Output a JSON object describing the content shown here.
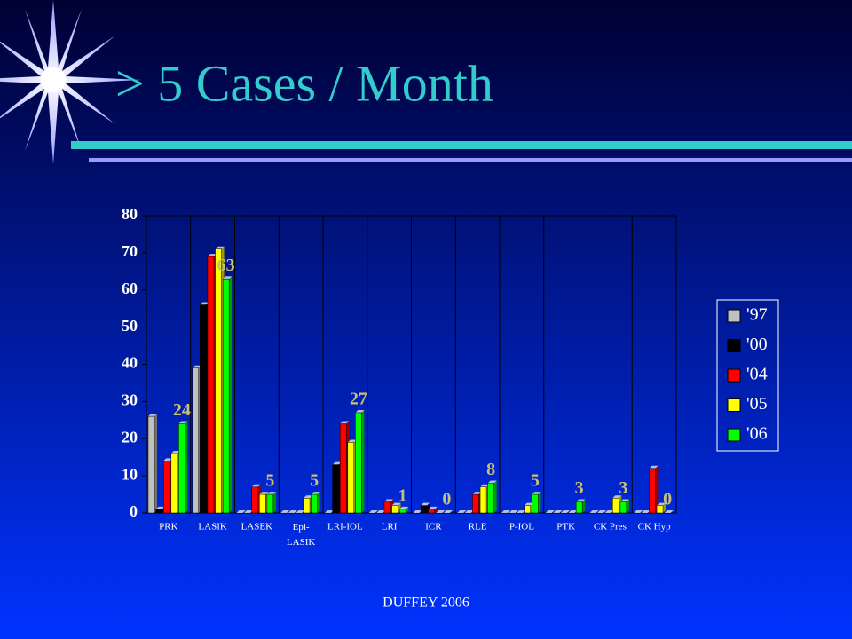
{
  "title": "> 5 Cases / Month",
  "footer": "DUFFEY 2006",
  "chart_data": {
    "type": "bar",
    "categories": [
      "PRK",
      "LASIK",
      "LASEK",
      "Epi-\nLASIK",
      "LRI-IOL",
      "LRI",
      "ICR",
      "RLE",
      "P-IOL",
      "PTK",
      "CK Pres",
      "CK Hyp"
    ],
    "series": [
      {
        "name": "'97",
        "color": "#c0c0c0",
        "values": [
          26,
          39,
          0,
          0,
          0,
          0,
          0,
          0,
          0,
          0,
          0,
          0
        ]
      },
      {
        "name": "'00",
        "color": "#000000",
        "values": [
          1,
          56,
          0,
          0,
          13,
          0,
          2,
          0,
          0,
          0,
          0,
          0
        ]
      },
      {
        "name": "'04",
        "color": "#ff0000",
        "values": [
          14,
          69,
          7,
          0,
          24,
          3,
          1,
          5,
          0,
          0,
          0,
          12
        ]
      },
      {
        "name": "'05",
        "color": "#ffff00",
        "values": [
          16,
          71,
          5,
          4,
          19,
          2,
          0,
          7,
          2,
          0,
          4,
          2
        ]
      },
      {
        "name": "'06",
        "color": "#00ff00",
        "values": [
          24,
          63,
          5,
          5,
          27,
          1,
          0,
          8,
          5,
          3,
          3,
          0
        ],
        "show_labels": true
      }
    ],
    "ylim": [
      0,
      80
    ],
    "yticks": [
      0,
      10,
      20,
      30,
      40,
      50,
      60,
      70,
      80
    ],
    "legend": "right"
  }
}
